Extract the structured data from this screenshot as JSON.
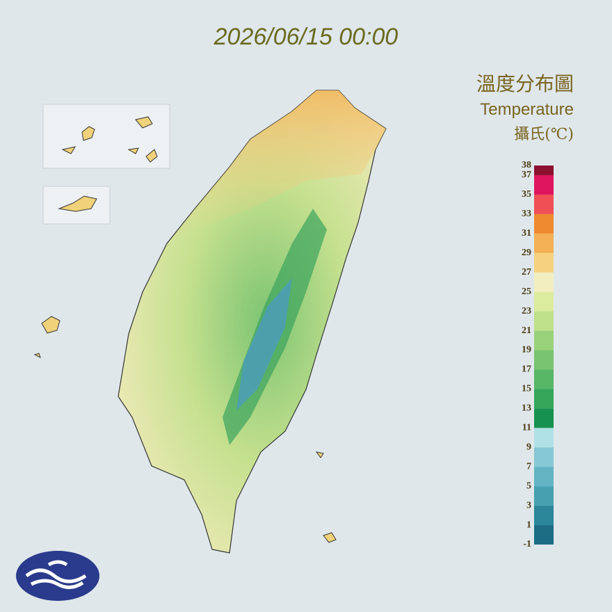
{
  "header": {
    "timestamp": "2026/06/15 00:00",
    "title": "溫度分布圖",
    "subtitle": "Temperature",
    "unit": "攝氏(℃)"
  },
  "legend": {
    "ticks": [
      -1,
      1,
      3,
      5,
      7,
      9,
      11,
      13,
      15,
      17,
      19,
      21,
      23,
      25,
      27,
      29,
      31,
      33,
      35,
      37,
      38
    ],
    "colors": [
      "#1b6d84",
      "#2b8799",
      "#46a0b0",
      "#64b4c3",
      "#86c8d3",
      "#b0e1e6",
      "#17924e",
      "#35a55a",
      "#58b667",
      "#78c471",
      "#9ad27b",
      "#bfe08a",
      "#dcec9e",
      "#f2eebf",
      "#f6d27e",
      "#f3b054",
      "#ef8a2e",
      "#ef4f55",
      "#e0155f",
      "#8e1030"
    ]
  }
}
